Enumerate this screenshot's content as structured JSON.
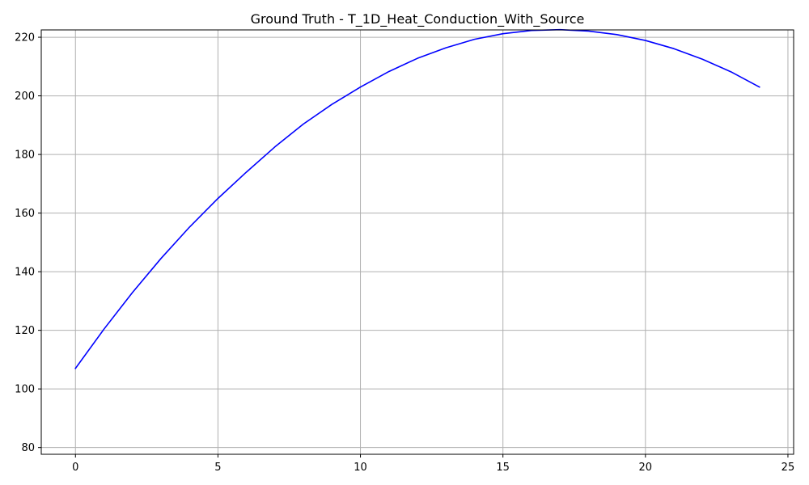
{
  "chart_data": {
    "type": "line",
    "title": "Ground Truth - T_1D_Heat_Conduction_With_Source",
    "xlabel": "",
    "ylabel": "",
    "xlim": [
      -1.2,
      25.2
    ],
    "ylim": [
      77.7,
      222.5
    ],
    "grid": true,
    "x_ticks": [
      0,
      5,
      10,
      15,
      20,
      25
    ],
    "y_ticks": [
      80,
      100,
      120,
      140,
      160,
      180,
      200,
      220
    ],
    "series": [
      {
        "color": "#0000ff",
        "x": [
          0,
          1,
          2,
          3,
          4,
          5,
          6,
          7,
          8,
          9,
          10,
          11,
          12,
          13,
          14,
          15,
          16,
          17,
          18,
          19,
          20,
          21,
          22,
          23,
          24
        ],
        "values": [
          107.0,
          120.4,
          132.9,
          144.5,
          155.2,
          165.0,
          174.0,
          182.6,
          190.4,
          197.1,
          203.0,
          208.3,
          212.8,
          216.4,
          219.3,
          221.2,
          222.3,
          222.6,
          222.1,
          220.9,
          218.9,
          216.1,
          212.5,
          208.2,
          203.0
        ]
      }
    ]
  }
}
